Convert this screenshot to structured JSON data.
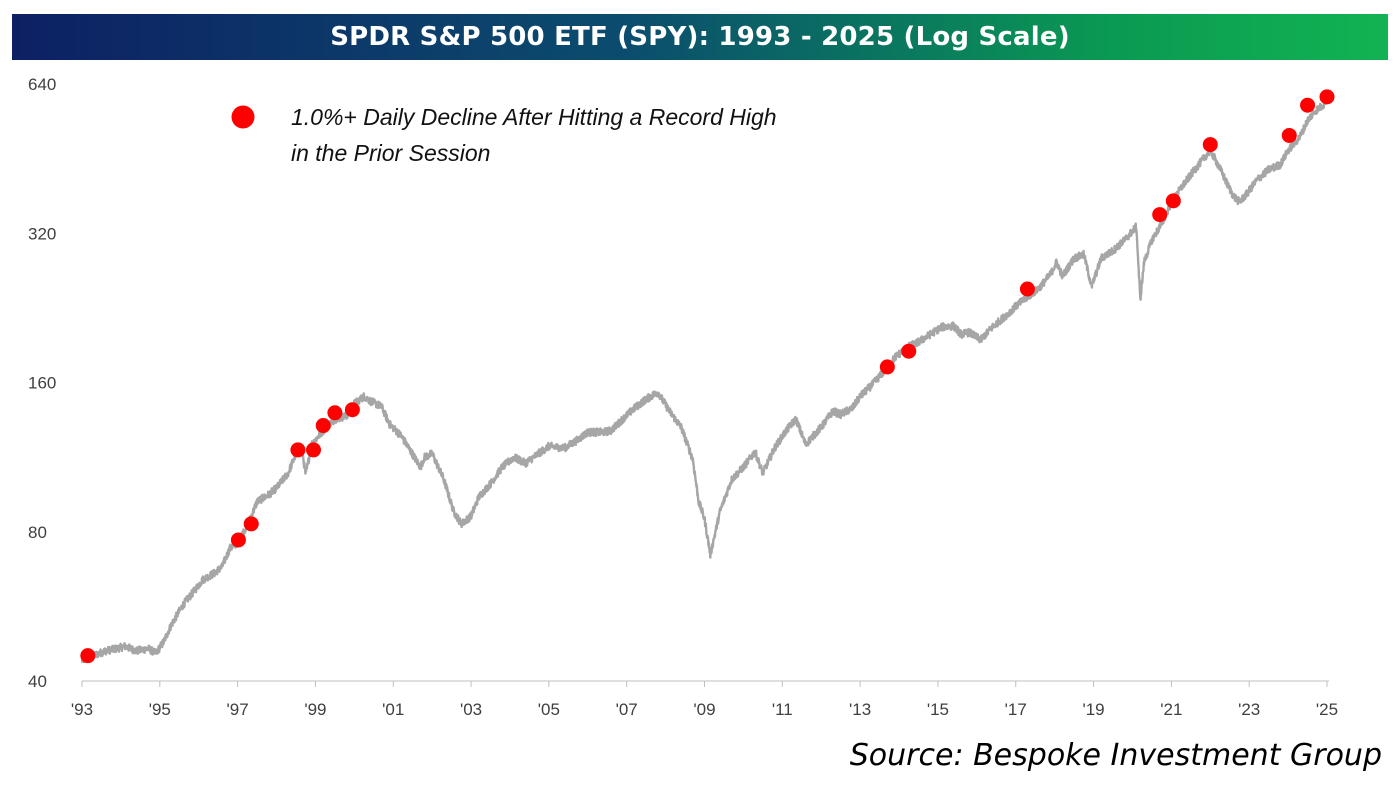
{
  "chart_data": {
    "type": "line",
    "title": "SPDR S&P 500 ETF (SPY): 1993 - 2025 (Log Scale)",
    "y_scale": "log",
    "ylim": [
      40,
      640
    ],
    "y_ticks": [
      40,
      80,
      160,
      320,
      640
    ],
    "y_tick_labels": [
      "40",
      "80",
      "160",
      "320",
      "640"
    ],
    "xlim": [
      1993.0,
      2025.0
    ],
    "x_ticks": [
      1993,
      1995,
      1997,
      1999,
      2001,
      2003,
      2005,
      2007,
      2009,
      2011,
      2013,
      2015,
      2017,
      2019,
      2021,
      2023,
      2025
    ],
    "x_tick_labels": [
      "'93",
      "'95",
      "'97",
      "'99",
      "'01",
      "'03",
      "'05",
      "'07",
      "'09",
      "'11",
      "'13",
      "'15",
      "'17",
      "'19",
      "'21",
      "'23",
      "'25"
    ],
    "line_color": "#a6a6a6",
    "marker_color": "#ff0000",
    "series": [
      {
        "name": "SPY",
        "x": [
          1993.0,
          1993.3,
          1993.6,
          1993.9,
          1994.1,
          1994.4,
          1994.7,
          1994.9,
          1995.1,
          1995.3,
          1995.6,
          1995.9,
          1996.1,
          1996.4,
          1996.6,
          1996.8,
          1997.0,
          1997.3,
          1997.5,
          1997.8,
          1998.0,
          1998.3,
          1998.5,
          1998.65,
          1998.75,
          1998.9,
          1999.2,
          1999.5,
          1999.8,
          2000.0,
          2000.25,
          2000.4,
          2000.7,
          2000.9,
          2001.2,
          2001.4,
          2001.7,
          2001.8,
          2002.0,
          2002.3,
          2002.55,
          2002.75,
          2003.0,
          2003.2,
          2003.5,
          2003.8,
          2004.1,
          2004.4,
          2004.8,
          2005.0,
          2005.4,
          2005.7,
          2006.0,
          2006.4,
          2006.6,
          2006.9,
          2007.2,
          2007.5,
          2007.8,
          2008.1,
          2008.4,
          2008.7,
          2008.85,
          2009.0,
          2009.15,
          2009.4,
          2009.7,
          2010.0,
          2010.3,
          2010.5,
          2010.8,
          2011.1,
          2011.35,
          2011.6,
          2011.8,
          2012.0,
          2012.3,
          2012.5,
          2012.8,
          2013.0,
          2013.3,
          2013.6,
          2013.9,
          2014.2,
          2014.5,
          2014.8,
          2015.1,
          2015.4,
          2015.6,
          2015.8,
          2016.1,
          2016.4,
          2016.8,
          2017.0,
          2017.3,
          2017.6,
          2017.9,
          2018.05,
          2018.2,
          2018.5,
          2018.75,
          2018.95,
          2019.2,
          2019.5,
          2019.8,
          2020.1,
          2020.2,
          2020.3,
          2020.5,
          2020.8,
          2021.0,
          2021.3,
          2021.6,
          2021.9,
          2022.0,
          2022.2,
          2022.45,
          2022.6,
          2022.75,
          2022.95,
          2023.2,
          2023.5,
          2023.8,
          2024.0,
          2024.3,
          2024.5,
          2024.7,
          2024.9,
          2025.0
        ],
        "y": [
          44,
          45,
          46,
          46.5,
          47,
          46,
          46.5,
          45.5,
          48,
          52,
          57,
          61,
          64,
          66,
          68,
          74,
          76,
          84,
          92,
          95,
          98,
          105,
          115,
          118,
          104,
          120,
          128,
          135,
          137,
          145,
          150,
          147,
          143,
          132,
          125,
          118,
          108,
          113,
          115,
          102,
          88,
          83,
          86,
          94,
          100,
          108,
          113,
          110,
          116,
          119,
          118,
          122,
          127,
          127,
          128,
          135,
          142,
          148,
          153,
          140,
          130,
          112,
          92,
          85,
          72,
          88,
          102,
          108,
          116,
          105,
          118,
          128,
          135,
          120,
          125,
          130,
          140,
          138,
          142,
          150,
          158,
          168,
          180,
          188,
          193,
          200,
          207,
          208,
          200,
          202,
          195,
          207,
          220,
          228,
          238,
          248,
          265,
          280,
          262,
          285,
          290,
          250,
          285,
          295,
          310,
          330,
          235,
          280,
          310,
          340,
          370,
          400,
          430,
          460,
          470,
          440,
          400,
          380,
          370,
          385,
          410,
          430,
          440,
          470,
          500,
          540,
          565,
          580,
          600
        ],
        "markers": {
          "name": "1.0%+ Daily Decline After Hitting a Record High in the Prior Session",
          "x": [
            1993.15,
            1997.02,
            1997.35,
            1998.55,
            1998.95,
            1999.2,
            1999.5,
            1999.95,
            2013.7,
            2014.25,
            2017.3,
            2020.7,
            2021.05,
            2022.0,
            2024.03,
            2024.5,
            2025.0
          ],
          "y": [
            45,
            77,
            83,
            117,
            117,
            131,
            139,
            141,
            172,
            185,
            247,
            349,
            372,
            483,
            504,
            580,
            603
          ]
        }
      }
    ],
    "legend": {
      "line1": "1.0%+ Daily Decline After Hitting a Record High",
      "line2": "in the Prior Session",
      "position": "top-left"
    }
  },
  "source": "Source: Bespoke Investment Group"
}
